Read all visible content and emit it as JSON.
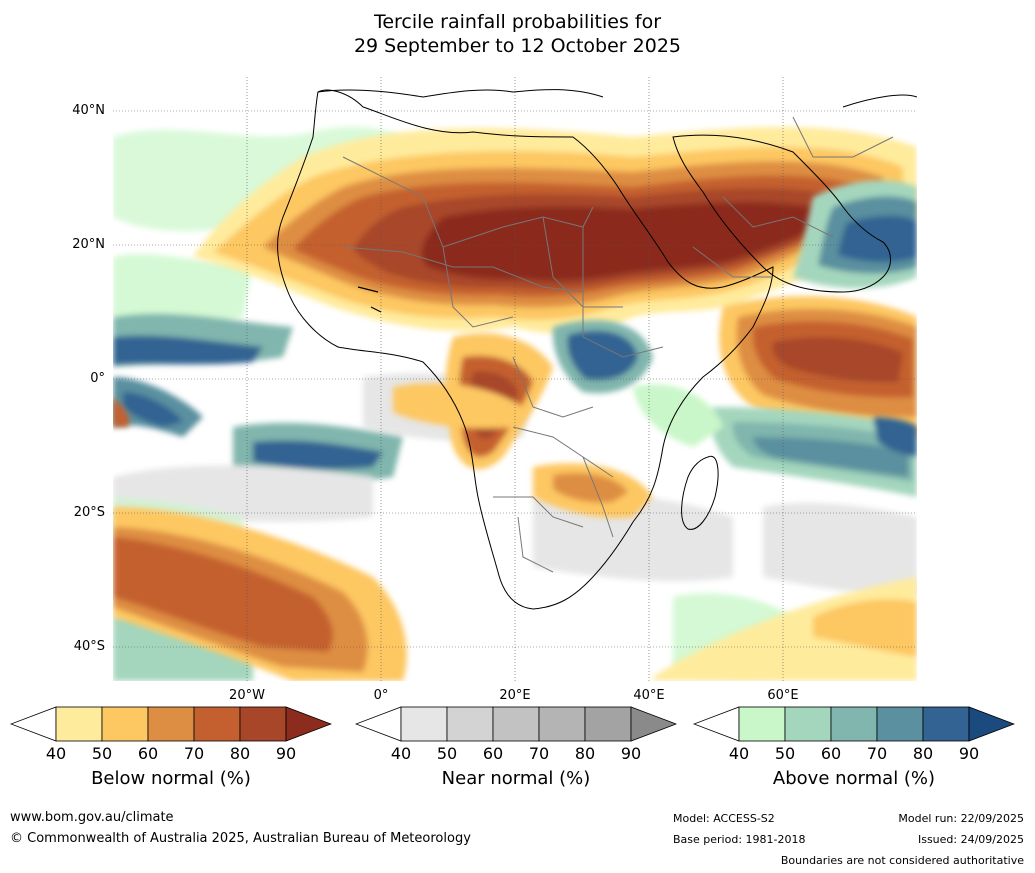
{
  "title_line1": "Tercile rainfall probabilities for",
  "title_line2": "29 September to 12 October 2025",
  "lat_labels": [
    "40°N",
    "20°N",
    "0°",
    "20°S",
    "40°S"
  ],
  "lon_labels": [
    "20°W",
    "0°",
    "20°E",
    "40°E",
    "60°E"
  ],
  "colorbars": [
    {
      "label": "Below normal (%)",
      "ticks": [
        "40",
        "50",
        "60",
        "70",
        "80",
        "90"
      ],
      "colors": [
        "#ffffff",
        "#ffeb9c",
        "#fdc762",
        "#de8e42",
        "#c4602f",
        "#a8462a",
        "#8b2c1f"
      ]
    },
    {
      "label": "Near normal (%)",
      "ticks": [
        "40",
        "50",
        "60",
        "70",
        "80",
        "90"
      ],
      "colors": [
        "#ffffff",
        "#e6e6e6",
        "#d3d3d3",
        "#c2c2c2",
        "#b4b4b4",
        "#a3a3a3",
        "#8a8a8a"
      ]
    },
    {
      "label": "Above normal (%)",
      "ticks": [
        "40",
        "50",
        "60",
        "70",
        "80",
        "90"
      ],
      "colors": [
        "#ffffff",
        "#c9f7c9",
        "#a4d6bd",
        "#80b6ad",
        "#5a909f",
        "#326392",
        "#1a4a7e"
      ]
    }
  ],
  "footer": {
    "website": "www.bom.gov.au/climate",
    "copyright": "© Commonwealth of Australia 2025, Australian Bureau of Meteorology",
    "model": "Model: ACCESS-S2",
    "base_period": "Base period: 1981-2018",
    "model_run": "Model run: 22/09/2025",
    "issued": "Issued: 24/09/2025",
    "disclaimer": "Boundaries are not considered authoritative"
  }
}
